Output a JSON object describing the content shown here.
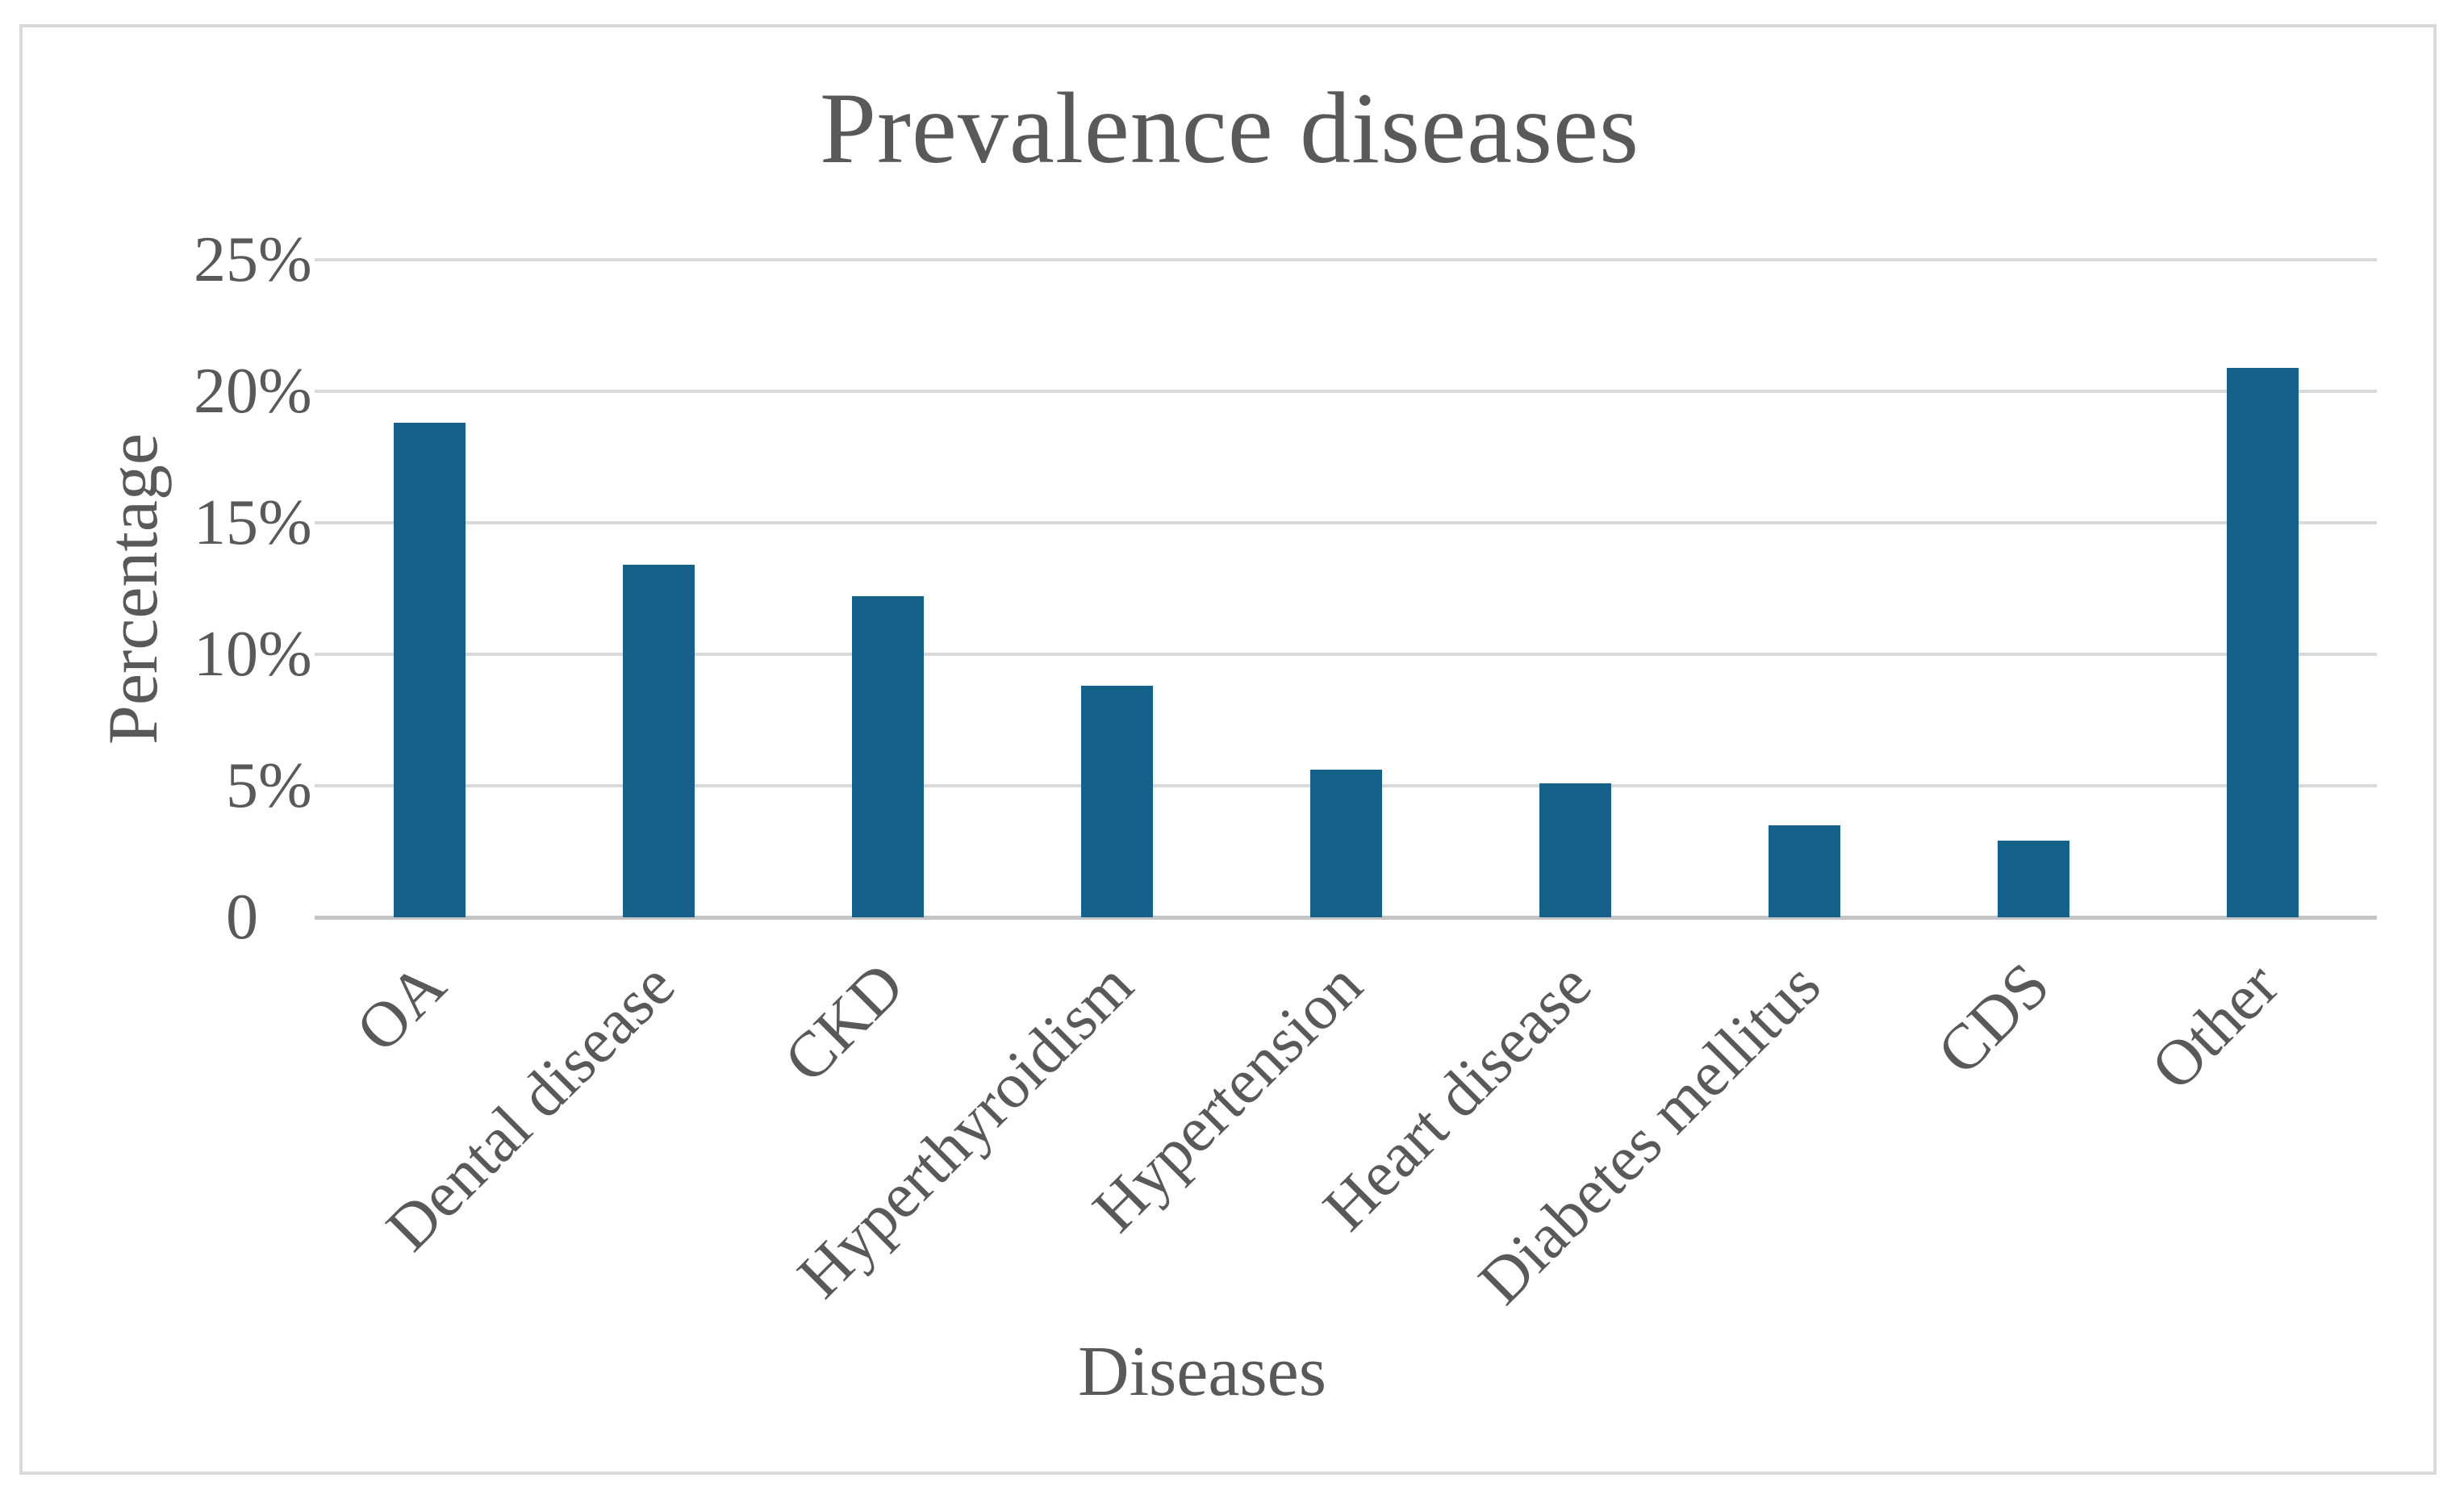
{
  "chart_data": {
    "type": "bar",
    "title": "Prevalence diseases",
    "xlabel": "Diseases",
    "ylabel": "Percentage",
    "categories": [
      "OA",
      "Dental disease",
      "CKD",
      "Hyperthyroidism",
      "Hypertension",
      "Heart disease",
      "Diabetes mellitus",
      "CDS",
      "Other"
    ],
    "values": [
      18.8,
      13.4,
      12.2,
      8.8,
      5.6,
      5.1,
      3.5,
      2.9,
      20.9
    ],
    "y_ticks": [
      "25%",
      "20%",
      "15%",
      "10%",
      "5%",
      "0"
    ],
    "ylim": [
      0,
      25
    ],
    "grid": "horizontal",
    "legend_position": "none",
    "colors": {
      "bar": "#15618a",
      "text": "#595959",
      "gridline": "#d9d9d9",
      "axis_line": "#c4c4c4",
      "frame_border": "#d9d9d9",
      "background": "#ffffff"
    }
  }
}
